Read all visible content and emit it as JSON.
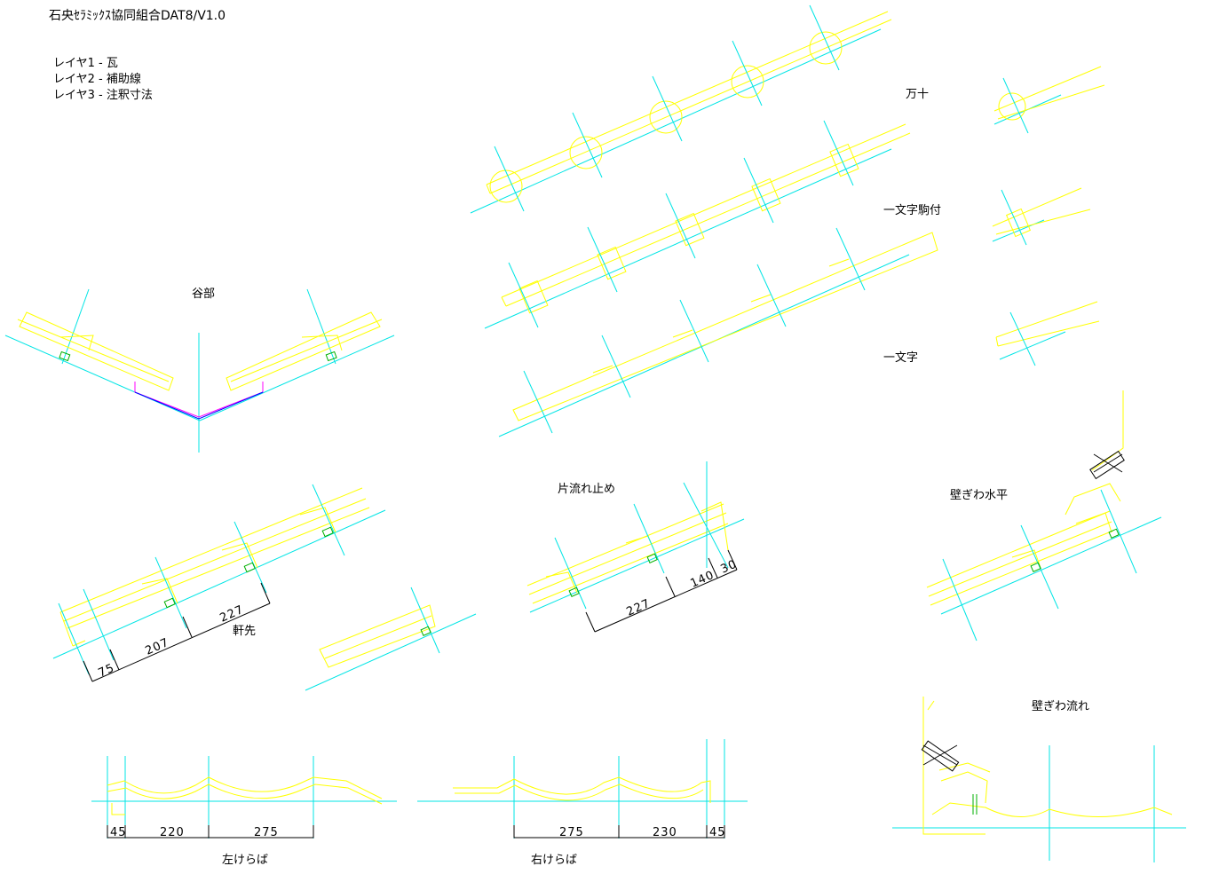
{
  "header": {
    "title": "石央ｾﾗﾐｯｸｽ協同組合DAT8/V1.0",
    "layers": [
      "レイヤ1 - 瓦",
      "レイヤ2 - 補助線",
      "レイヤ3 - 注釈寸法"
    ]
  },
  "labels": {
    "tanibu": "谷部",
    "noki": "軒先",
    "katanagare": "片流れ止め",
    "manju": "万十",
    "ichimonji_komatsuki": "一文字駒付",
    "ichimonji": "一文字",
    "kabegiwa_suihei": "壁ぎわ水平",
    "kabegiwa_nagare": "壁ぎわ流れ",
    "hidari_keraba": "左けらば",
    "migi_keraba": "右けらば"
  },
  "dimensions": {
    "noki": [
      "75",
      "207",
      "227"
    ],
    "katanagare": [
      "227",
      "140",
      "30"
    ],
    "hidari_keraba": [
      "45",
      "220",
      "275"
    ],
    "migi_keraba": [
      "275",
      "230",
      "45"
    ]
  },
  "colors": {
    "tile": "#ffff00",
    "guide": "#00e5e5",
    "dimension": "#000000",
    "batten": "#00b000",
    "gutter": "#ff00ff"
  }
}
